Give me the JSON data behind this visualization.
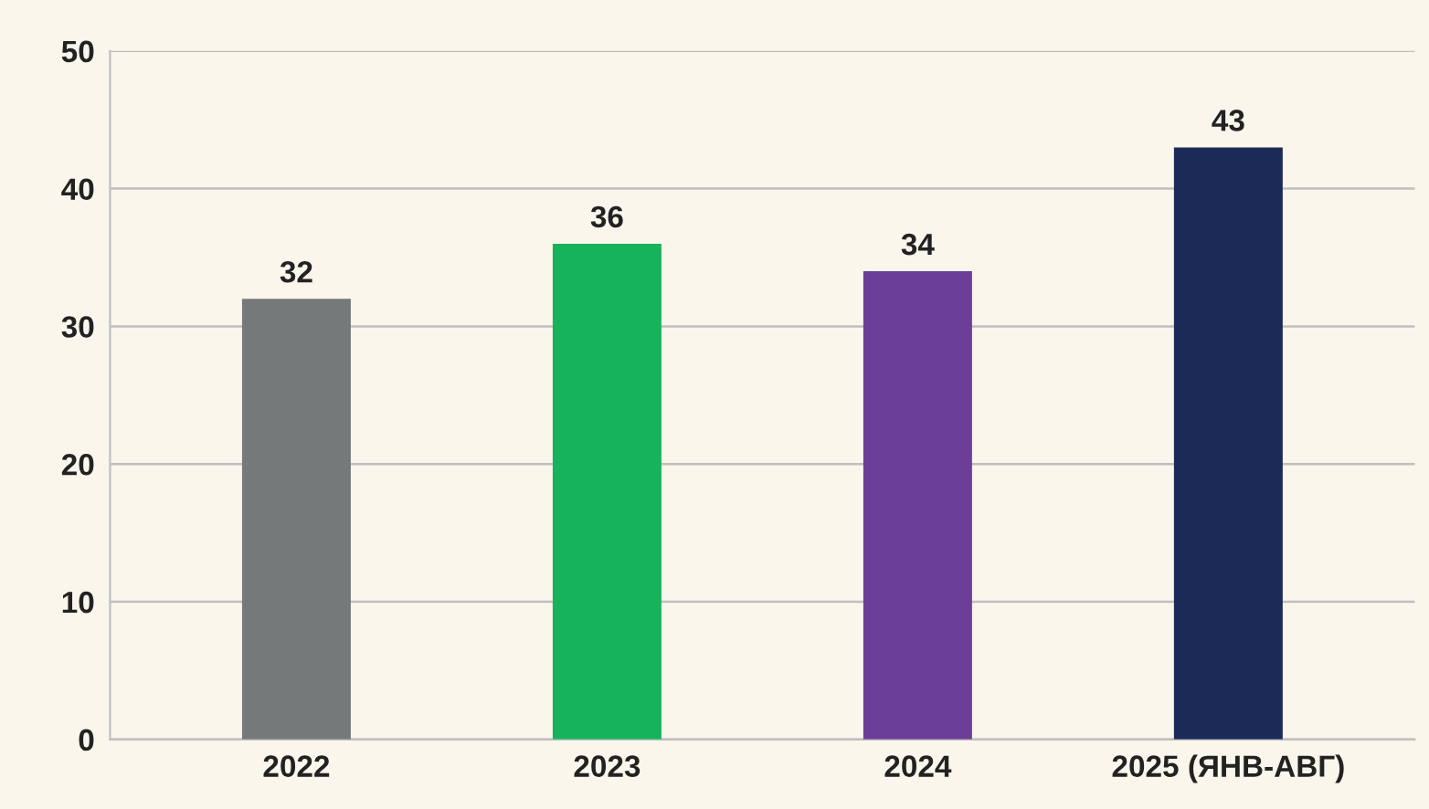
{
  "chart_data": {
    "type": "bar",
    "categories": [
      "2022",
      "2023",
      "2024",
      "2025 (ЯНВ-АВГ)"
    ],
    "values": [
      32,
      36,
      34,
      43
    ],
    "colors": [
      "#76797a",
      "#16b35b",
      "#6b3f98",
      "#1c2a58"
    ],
    "ylim": [
      0,
      50
    ],
    "yticks": [
      0,
      10,
      20,
      30,
      40,
      50
    ],
    "grid": "y",
    "data_labels": true
  }
}
